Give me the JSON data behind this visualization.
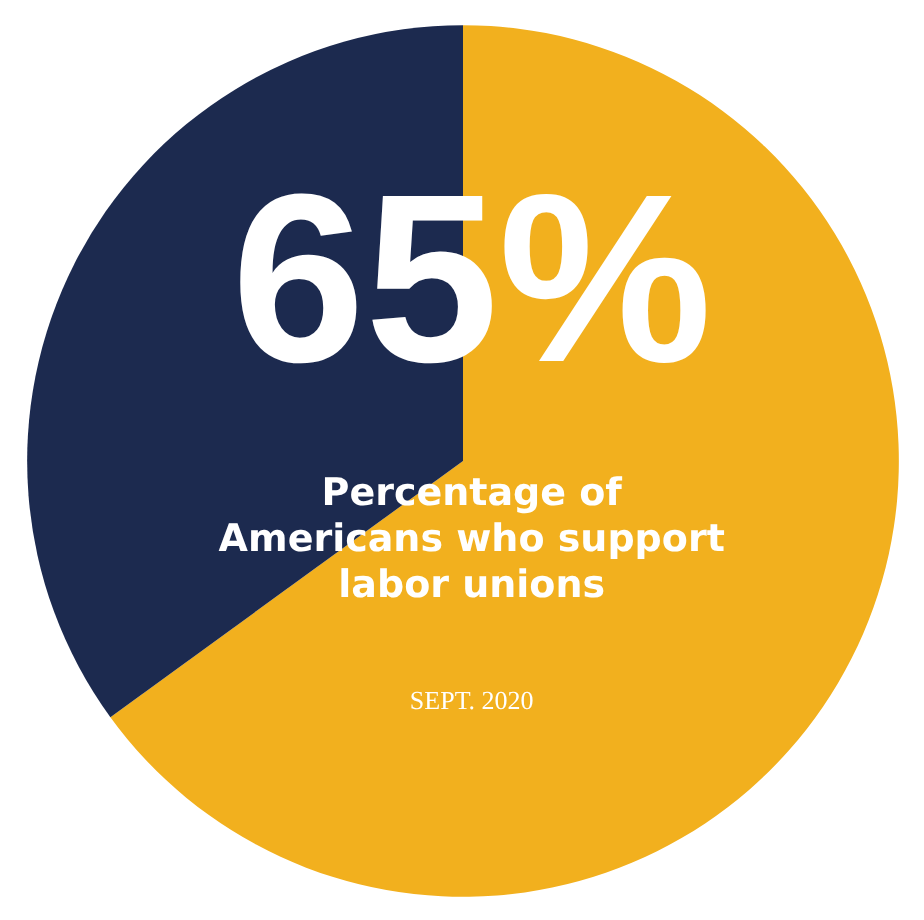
{
  "chart_data": {
    "type": "pie",
    "title": "Percentage of\nAmericans who support\nlabor unions",
    "categories": [
      null,
      null
    ],
    "values": [
      65,
      35
    ],
    "colors": [
      "#f2b01e",
      "#1c2a4f"
    ],
    "value_labels": [
      "65%",
      null
    ],
    "annotations": [
      "SEPT. 2020"
    ]
  }
}
